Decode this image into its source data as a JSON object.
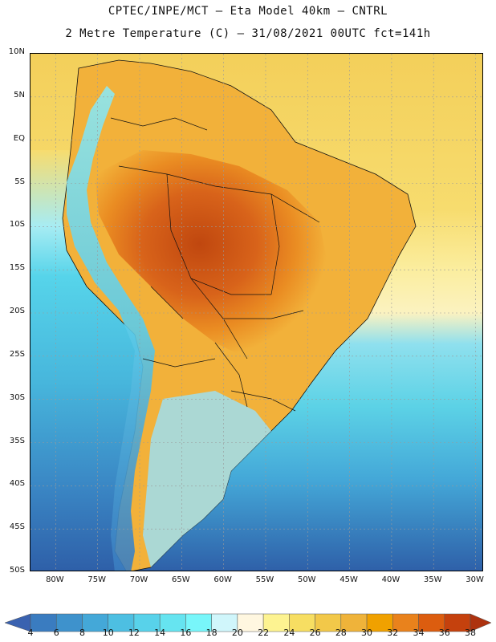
{
  "title_line1": "CPTEC/INPE/MCT –  Eta Model 40km – CNTRL",
  "title_line2": "2 Metre Temperature (C) – 31/08/2021 00UTC fct=141h",
  "map": {
    "lat_labels": [
      "10N",
      "5N",
      "EQ",
      "5S",
      "10S",
      "15S",
      "20S",
      "25S",
      "30S",
      "35S",
      "40S",
      "45S",
      "50S"
    ],
    "lon_labels": [
      "80W",
      "75W",
      "70W",
      "65W",
      "60W",
      "55W",
      "50W",
      "45W",
      "40W",
      "35W",
      "30W"
    ],
    "lat_range": [
      10,
      -50
    ],
    "lon_range": [
      -83,
      -29
    ],
    "colors": {
      "ocean_tropical": "#f3cf5a",
      "ocean_mid": "#5cd2e6",
      "ocean_south": "#3c86c6",
      "ocean_far_south": "#2e5fa8",
      "land_hot": "#e87e1f",
      "land_very_hot": "#c8511a",
      "land_warm": "#f3b336",
      "andes_cold": "#46a2d8",
      "andes_cool": "#6ee6f0",
      "patagonia": "#3c8ec8"
    }
  },
  "colorbar": {
    "labels": [
      "4",
      "6",
      "8",
      "10",
      "12",
      "14",
      "16",
      "18",
      "20",
      "22",
      "24",
      "26",
      "28",
      "30",
      "32",
      "34",
      "36",
      "38"
    ],
    "colors": [
      "#3a62b0",
      "#3a7cc0",
      "#3e92cc",
      "#44a8d8",
      "#4dbfe2",
      "#58d2ea",
      "#66e4f0",
      "#78f6fa",
      "#d0f6fb",
      "#fff7e0",
      "#fdf391",
      "#f7de62",
      "#f2c849",
      "#efb33a",
      "#f0a100",
      "#e9821c",
      "#dc5d0f",
      "#c5410d",
      "#ad320f"
    ]
  }
}
